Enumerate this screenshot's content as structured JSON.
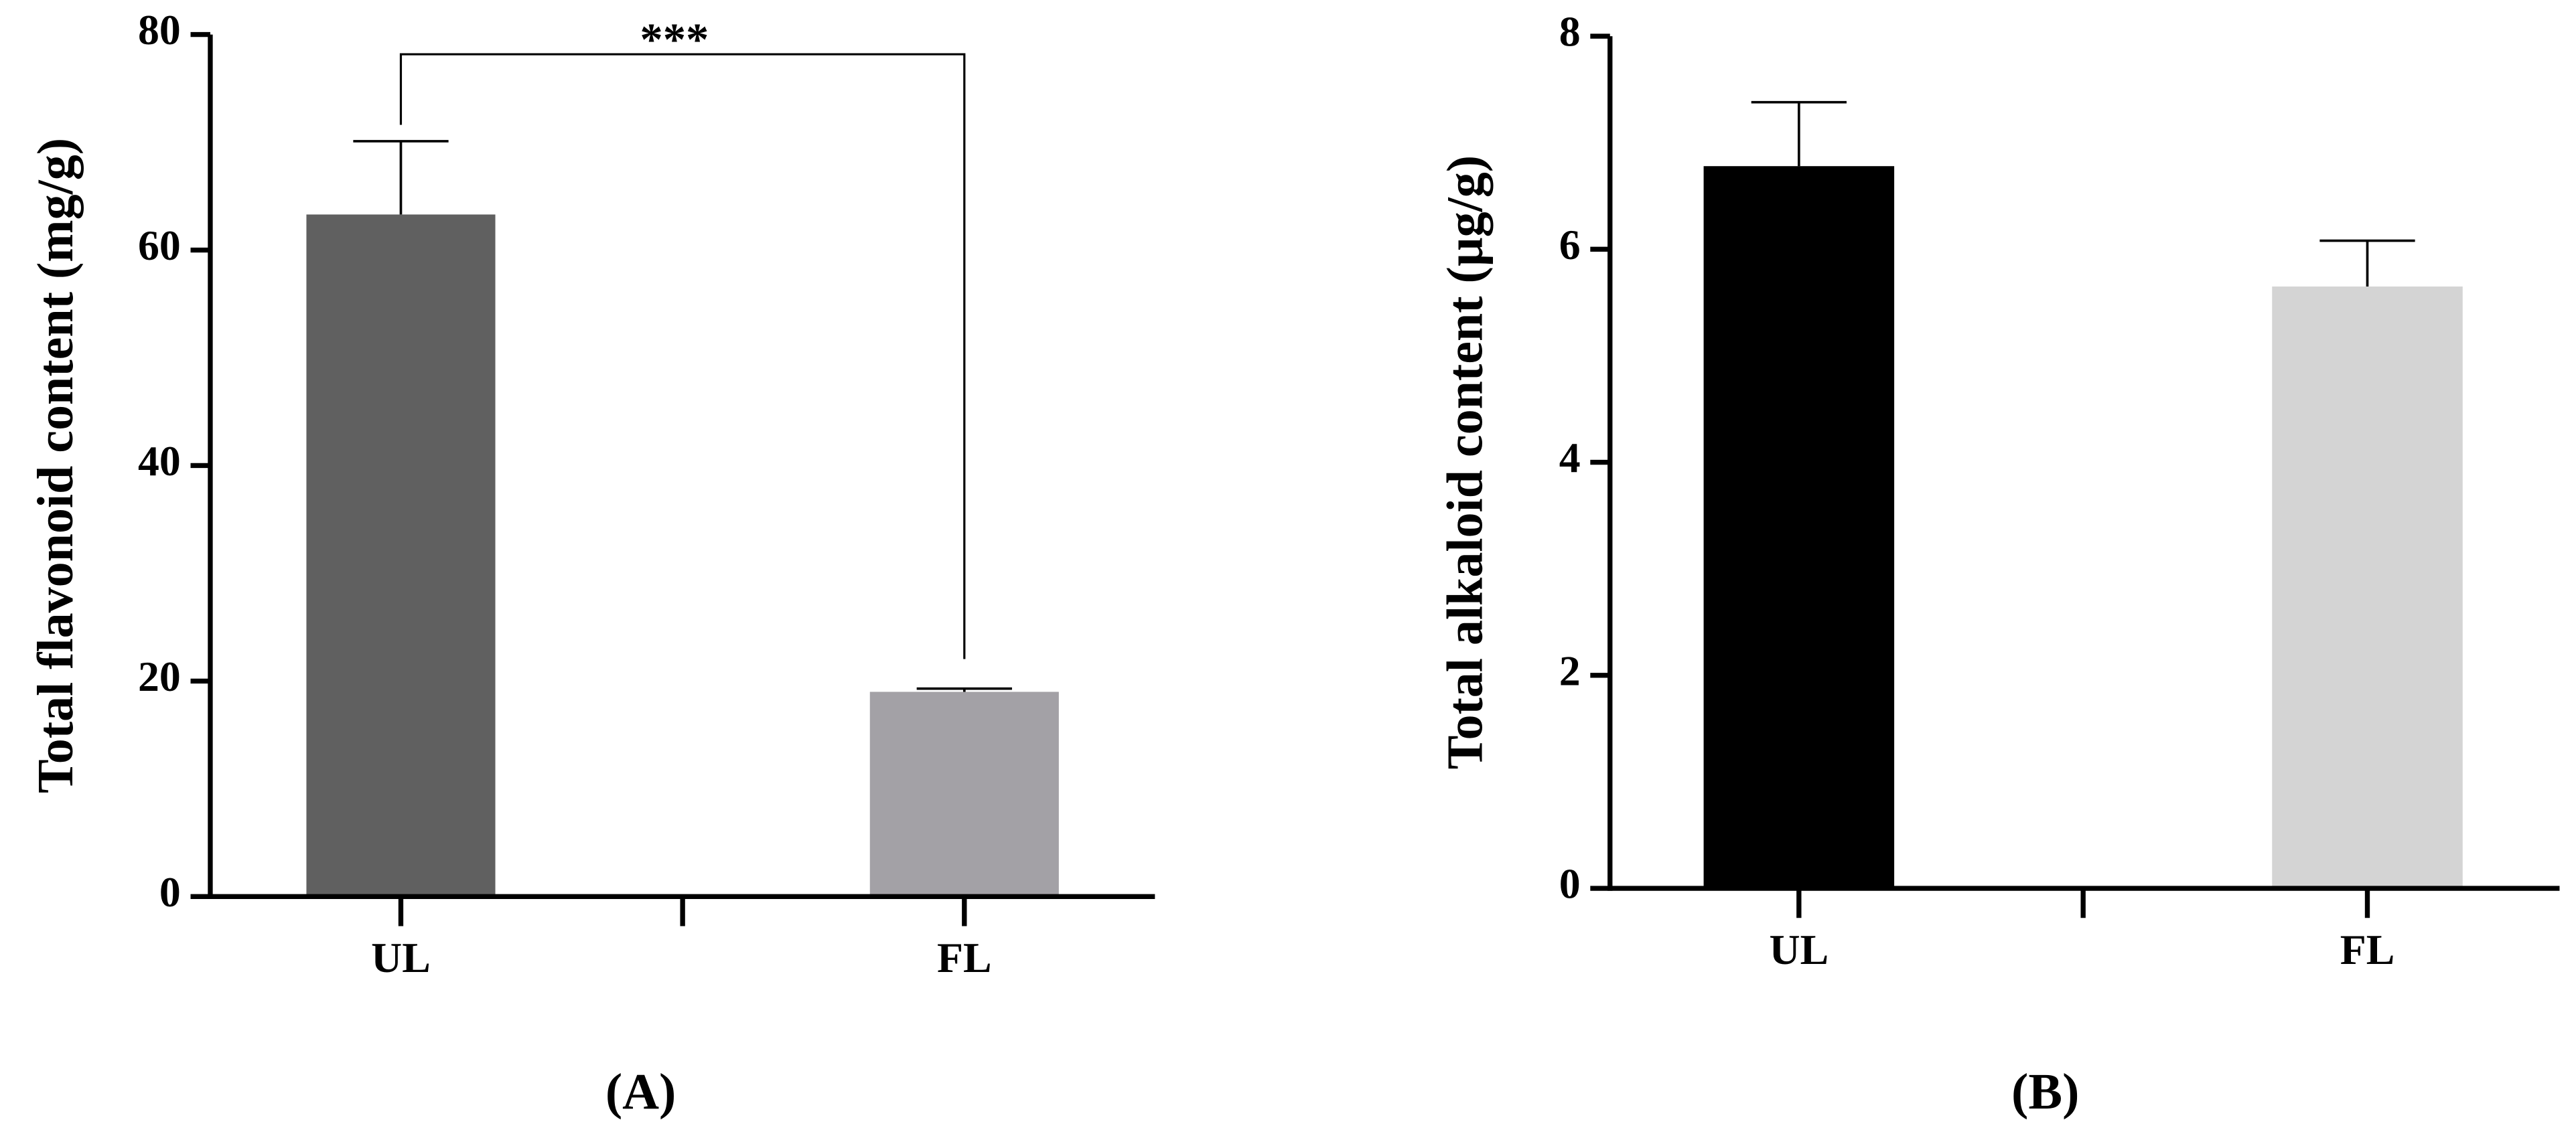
{
  "chart_data": [
    {
      "type": "bar",
      "panel_label": "(A)",
      "ylabel": "Total flavonoid content (mg/g)",
      "categories": [
        "UL",
        "FL"
      ],
      "values": [
        63.3,
        19.0
      ],
      "errors": [
        6.8,
        0.3
      ],
      "colors": [
        "#606060",
        "#a3a1a6"
      ],
      "ylim": [
        0,
        80
      ],
      "yticks": [
        0,
        20,
        40,
        60,
        80
      ],
      "annotation": "***"
    },
    {
      "type": "bar",
      "panel_label": "(B)",
      "ylabel": "Total alkaloid content (µg/g)",
      "categories": [
        "UL",
        "FL"
      ],
      "values": [
        6.78,
        5.65
      ],
      "errors": [
        0.6,
        0.43
      ],
      "colors": [
        "#000000",
        "#d4d4d4"
      ],
      "ylim": [
        0,
        8
      ],
      "yticks": [
        0,
        2,
        4,
        6,
        8
      ]
    }
  ]
}
